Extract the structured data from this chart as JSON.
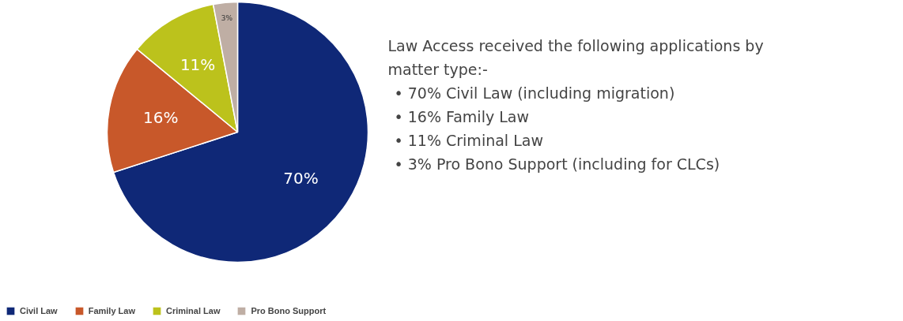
{
  "chart_data": {
    "type": "pie",
    "categories": [
      "Civil Law",
      "Family Law",
      "Criminal Law",
      "Pro Bono Support"
    ],
    "values": [
      70,
      16,
      11,
      3
    ],
    "colors": [
      "#0f2877",
      "#c8582a",
      "#bcc21c",
      "#bfaea4"
    ],
    "value_labels": [
      "70%",
      "16%",
      "11%",
      "3%"
    ],
    "legend": "bottom left",
    "annotations": [
      "Law Access received the following applications by matter type:-",
      "• 70% Civil Law (including migration)",
      "• 16% Family Law",
      "• 11% Criminal Law",
      "• 3% Pro Bono Support (including for CLCs)"
    ]
  }
}
